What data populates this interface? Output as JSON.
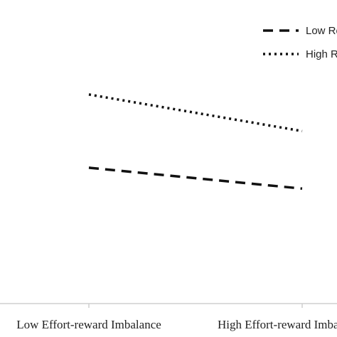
{
  "chart_data": {
    "type": "line",
    "categories": [
      "Low Effort-reward Imbalance",
      "High Effort-reward Imbalance"
    ],
    "series": [
      {
        "name": "Low Re",
        "values": [
          3.3,
          3.1
        ],
        "style": "dashed"
      },
      {
        "name": "High Re",
        "values": [
          4.0,
          3.65
        ],
        "style": "dotted"
      }
    ],
    "ylim": [
      2.0,
      4.7
    ],
    "grid": false,
    "legend_placement": "top-right",
    "color": "#111111"
  }
}
